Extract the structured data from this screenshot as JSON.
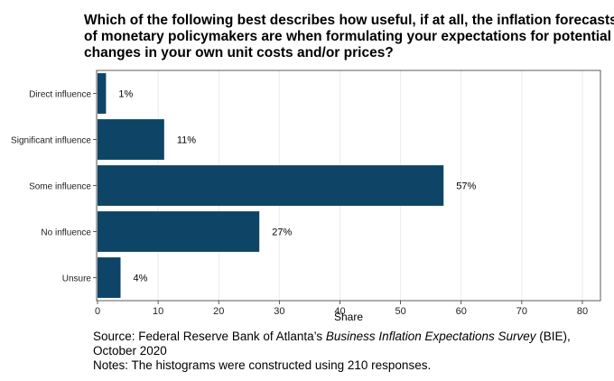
{
  "title_lines": [
    "Which of the following best describes how useful, if at all, the inflation forecasts",
    "of monetary policymakers are when formulating your expectations for potential",
    "changes in your own unit costs and/or prices?"
  ],
  "chart_data": {
    "type": "bar",
    "orientation": "horizontal",
    "categories": [
      "Direct influence",
      "Significant influence",
      "Some influence",
      "No influence",
      "Unsure"
    ],
    "values": [
      1.4,
      11,
      57.1,
      26.7,
      3.8
    ],
    "labels": [
      "1%",
      "11%",
      "57%",
      "27%",
      "4%"
    ],
    "xlabel": "Share",
    "ylabel": "",
    "xlim": [
      0,
      82
    ],
    "xticks": [
      0,
      10,
      20,
      30,
      40,
      50,
      60,
      70,
      80
    ],
    "grid": true,
    "bar_color": "#0e4566",
    "grid_color": "#ebebeb",
    "legend": "none"
  },
  "source": {
    "prefix": "Source: Federal Reserve Bank of Atlanta’s ",
    "italic": "Business Inflation Expectations Survey",
    "suffix": " (BIE), October 2020",
    "notes": "Notes: The histograms were constructed using 210 responses."
  }
}
